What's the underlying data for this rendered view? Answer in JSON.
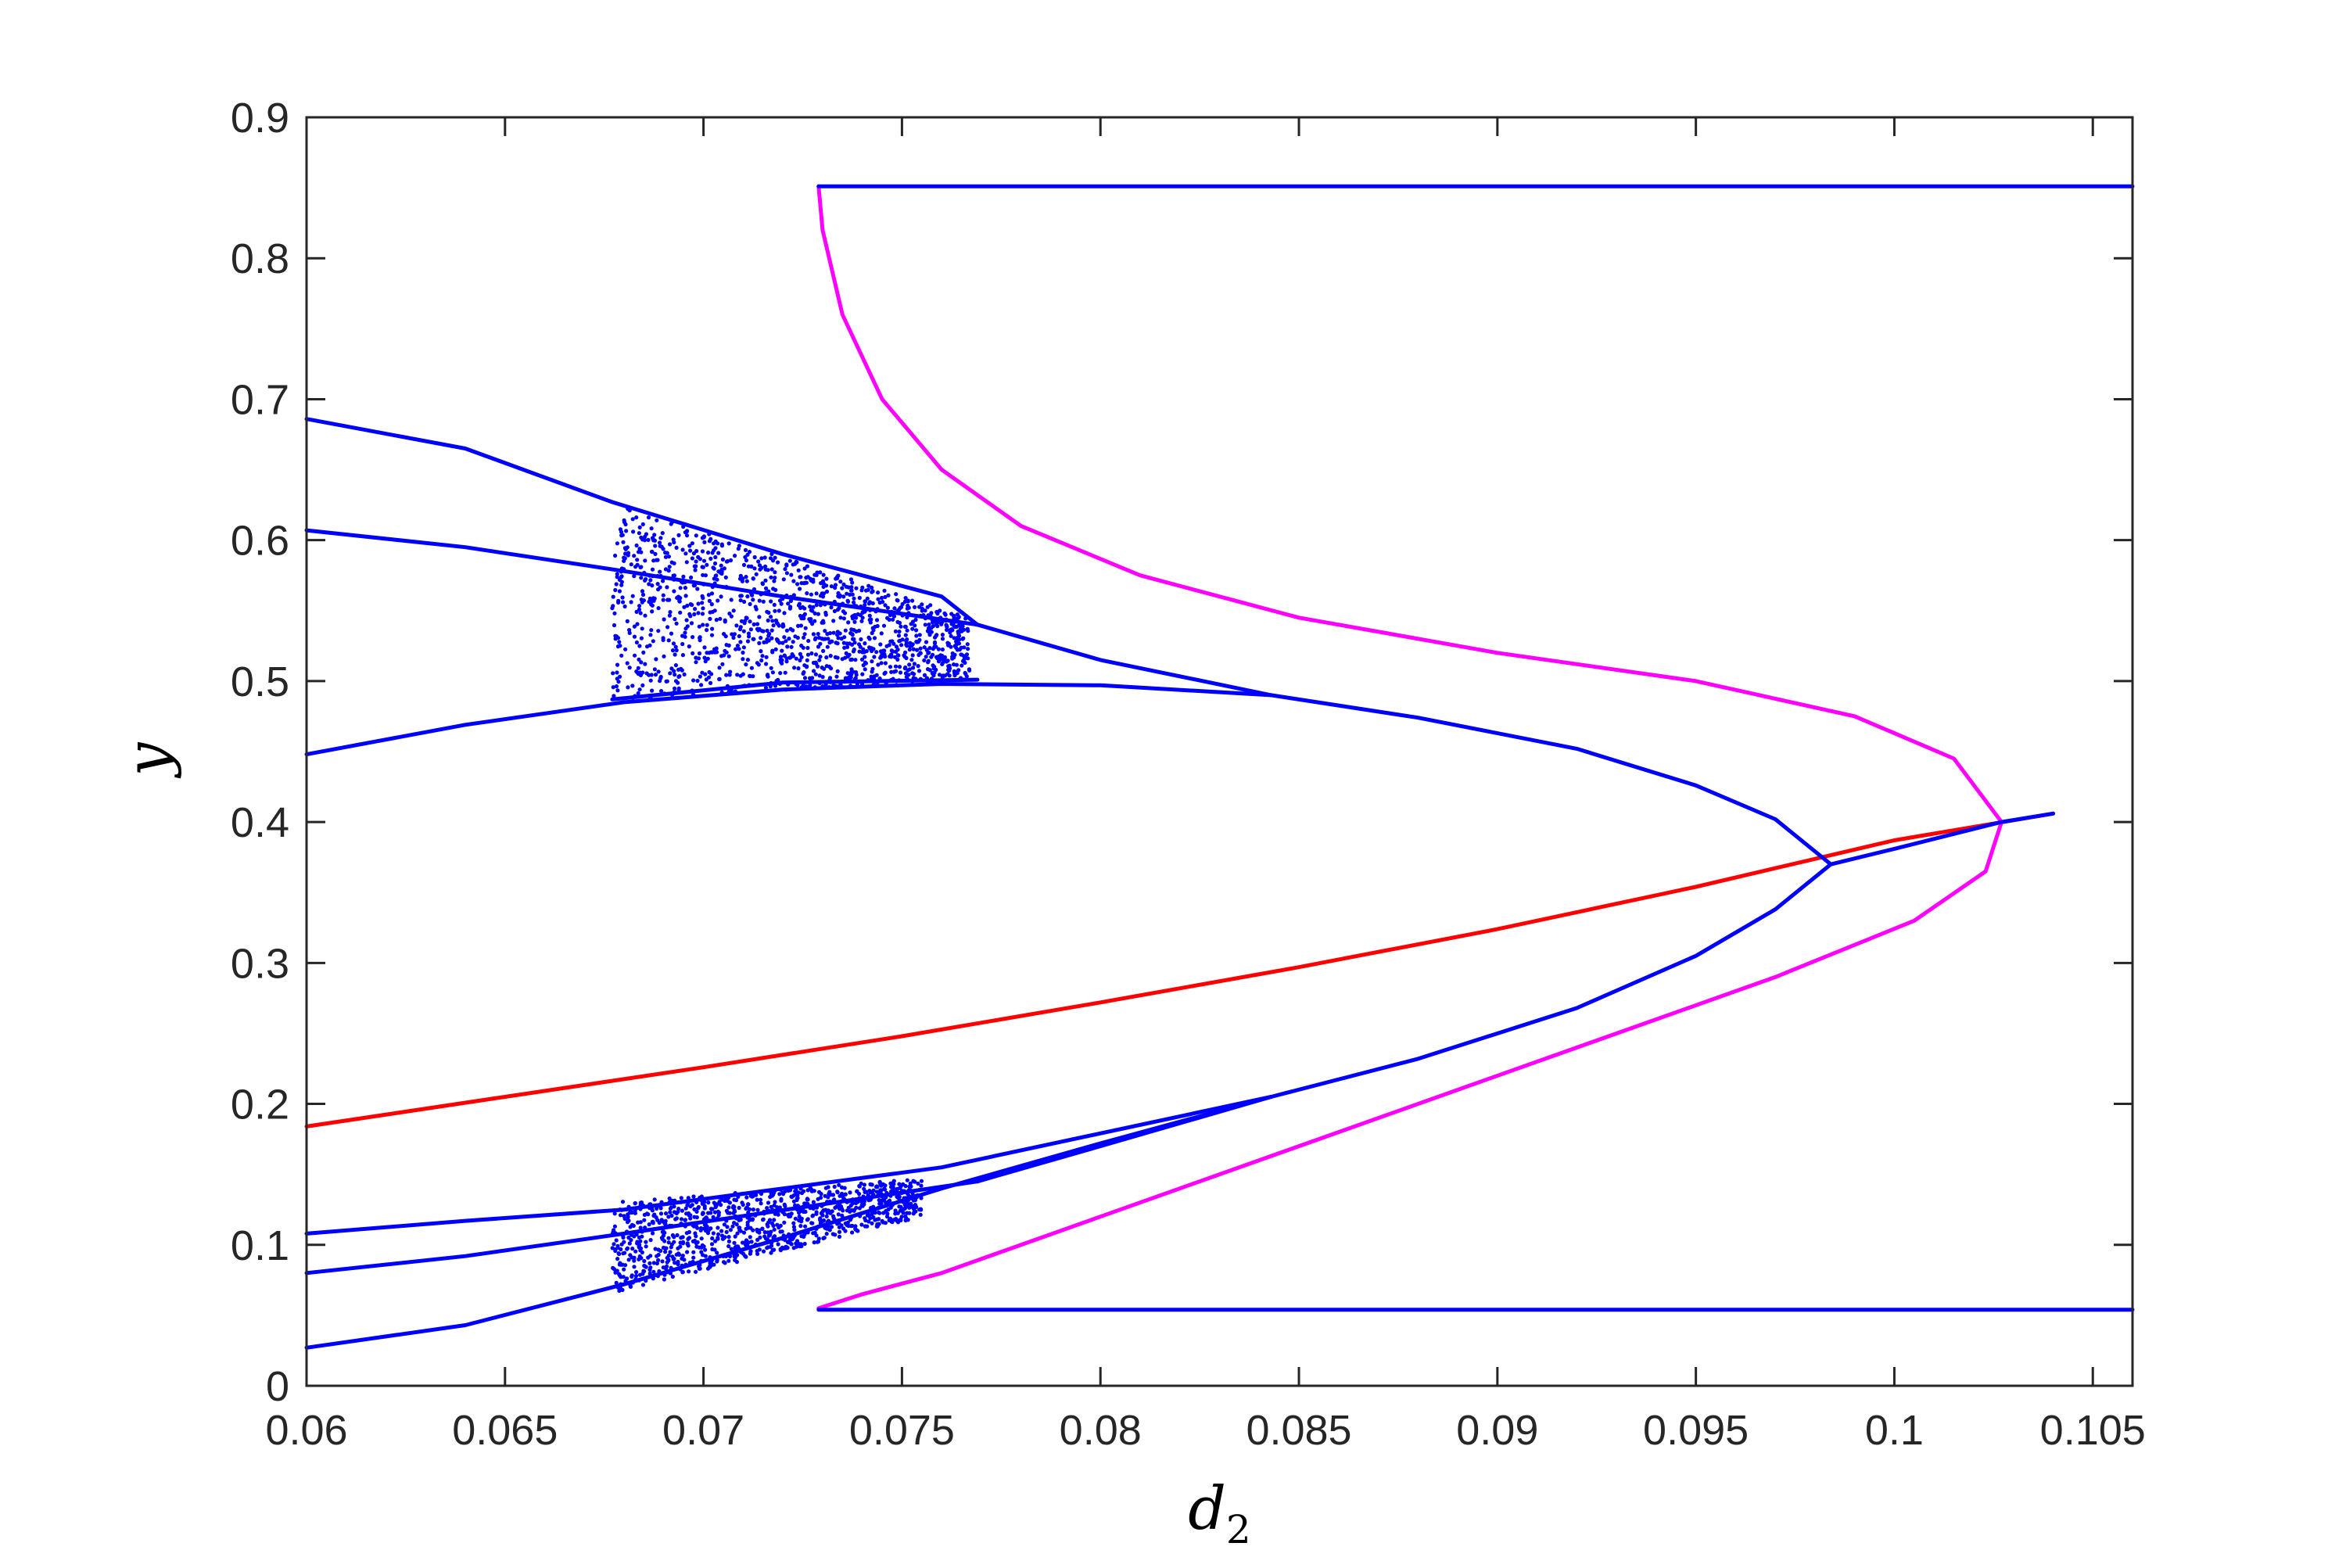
{
  "chart_data": {
    "type": "line",
    "title": "",
    "xlabel": "d",
    "xlabel_subscript": "2",
    "ylabel": "y",
    "xlim": [
      0.06,
      0.106
    ],
    "ylim": [
      0,
      0.9
    ],
    "x_ticks": [
      "0.06",
      "0.065",
      "0.07",
      "0.075",
      "0.08",
      "0.085",
      "0.09",
      "0.095",
      "0.1",
      "0.105"
    ],
    "y_ticks": [
      "0",
      "0.1",
      "0.2",
      "0.3",
      "0.4",
      "0.5",
      "0.6",
      "0.7",
      "0.8",
      "0.9"
    ],
    "grid": false,
    "colors": {
      "blue": "#0000ff",
      "red": "#ff0000",
      "magenta": "#ff00ff",
      "axis": "#262626"
    },
    "series": [
      {
        "color": "#ff0000",
        "x": [
          0.06,
          0.065,
          0.07,
          0.075,
          0.08,
          0.085,
          0.09,
          0.095,
          0.1,
          0.104
        ],
        "y": [
          0.184,
          0.205,
          0.226,
          0.248,
          0.272,
          0.297,
          0.324,
          0.354,
          0.387,
          0.406
        ]
      },
      {
        "color": "#ff00ff",
        "x": [
          0.0729,
          0.073,
          0.0735,
          0.0745,
          0.076,
          0.078,
          0.081,
          0.085,
          0.09,
          0.095,
          0.099,
          0.1015,
          0.1027,
          0.1023,
          0.1005,
          0.097,
          0.092,
          0.086,
          0.08,
          0.076,
          0.074,
          0.0729
        ],
        "y": [
          0.851,
          0.82,
          0.76,
          0.7,
          0.65,
          0.61,
          0.575,
          0.545,
          0.52,
          0.5,
          0.475,
          0.445,
          0.4,
          0.365,
          0.33,
          0.29,
          0.24,
          0.18,
          0.12,
          0.08,
          0.065,
          0.055
        ]
      },
      {
        "color": "#0000ff",
        "x": [
          0.0729,
          0.106
        ],
        "y": [
          0.851,
          0.851
        ]
      },
      {
        "color": "#0000ff",
        "x": [
          0.0729,
          0.106
        ],
        "y": [
          0.054,
          0.054
        ]
      },
      {
        "color": "#0000ff",
        "x": [
          0.0843,
          0.088,
          0.092,
          0.095,
          0.097,
          0.0984
        ],
        "y": [
          0.49,
          0.474,
          0.452,
          0.426,
          0.402,
          0.37
        ]
      },
      {
        "color": "#0000ff",
        "x": [
          0.0843,
          0.088,
          0.092,
          0.095,
          0.097,
          0.0984
        ],
        "y": [
          0.205,
          0.232,
          0.268,
          0.305,
          0.338,
          0.37
        ]
      },
      {
        "color": "#0000ff",
        "x": [
          0.0984,
          0.1,
          0.1027,
          0.104
        ],
        "y": [
          0.37,
          0.381,
          0.4,
          0.406
        ]
      },
      {
        "color": "#0000ff",
        "x": [
          0.06,
          0.064,
          0.068,
          0.072,
          0.076,
          0.08,
          0.0843
        ],
        "y": [
          0.448,
          0.469,
          0.485,
          0.494,
          0.498,
          0.497,
          0.49
        ]
      },
      {
        "color": "#0000ff",
        "x": [
          0.06,
          0.064,
          0.068,
          0.072,
          0.0769
        ],
        "y": [
          0.607,
          0.595,
          0.578,
          0.56,
          0.54
        ]
      },
      {
        "color": "#0000ff",
        "x": [
          0.0769,
          0.08,
          0.0843
        ],
        "y": [
          0.54,
          0.515,
          0.49
        ]
      },
      {
        "color": "#0000ff",
        "x": [
          0.06,
          0.064,
          0.0677
        ],
        "y": [
          0.686,
          0.665,
          0.627
        ]
      },
      {
        "color": "#0000ff",
        "x": [
          0.0677,
          0.072,
          0.076,
          0.0769
        ],
        "y": [
          0.627,
          0.59,
          0.56,
          0.54
        ]
      },
      {
        "color": "#0000ff",
        "x": [
          0.0677,
          0.072,
          0.0769
        ],
        "y": [
          0.487,
          0.499,
          0.501
        ]
      },
      {
        "color": "#0000ff",
        "x": [
          0.06,
          0.064,
          0.068,
          0.072,
          0.076,
          0.08,
          0.0843
        ],
        "y": [
          0.027,
          0.043,
          0.072,
          0.105,
          0.14,
          0.172,
          0.205
        ]
      },
      {
        "color": "#0000ff",
        "x": [
          0.06,
          0.064,
          0.068,
          0.0769
        ],
        "y": [
          0.08,
          0.092,
          0.108,
          0.145
        ]
      },
      {
        "color": "#0000ff",
        "x": [
          0.06,
          0.064,
          0.068,
          0.072,
          0.076,
          0.0843
        ],
        "y": [
          0.108,
          0.117,
          0.125,
          0.14,
          0.155,
          0.205
        ]
      },
      {
        "color": "#0000ff",
        "x": [
          0.0769,
          0.08,
          0.0843
        ],
        "y": [
          0.145,
          0.17,
          0.205
        ]
      }
    ],
    "scatter_regions": [
      {
        "color": "#0000ff",
        "x": [
          0.0677,
          0.0767
        ],
        "y_top": [
          0.627,
          0.545
        ],
        "y_bottom": [
          0.487,
          0.501
        ],
        "count": 1400
      },
      {
        "color": "#0000ff",
        "x": [
          0.0677,
          0.0755
        ],
        "y_top": [
          0.13,
          0.147
        ],
        "y_bottom": [
          0.066,
          0.12
        ],
        "count": 1100
      }
    ]
  }
}
